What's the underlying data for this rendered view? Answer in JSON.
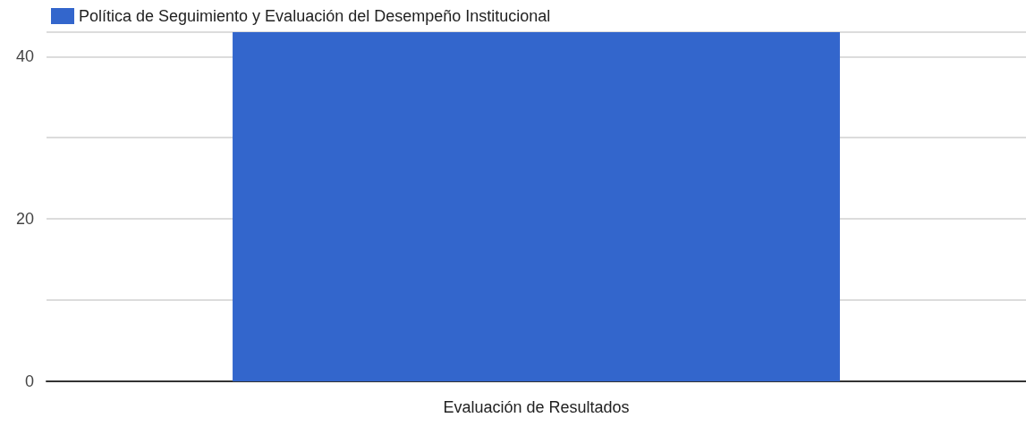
{
  "chart_data": {
    "type": "bar",
    "categories": [
      "Evaluación de Resultados"
    ],
    "series": [
      {
        "name": "Política de Seguimiento y Evaluación del Desempeño Institucional",
        "color": "#3366cc",
        "values": [
          43
        ]
      }
    ],
    "ylim": [
      0,
      43
    ],
    "yticks": [
      0,
      {
        "value": 10,
        "label": null
      },
      20,
      {
        "value": 30,
        "label": null
      },
      40
    ],
    "grid": "y",
    "legend": "top left"
  }
}
